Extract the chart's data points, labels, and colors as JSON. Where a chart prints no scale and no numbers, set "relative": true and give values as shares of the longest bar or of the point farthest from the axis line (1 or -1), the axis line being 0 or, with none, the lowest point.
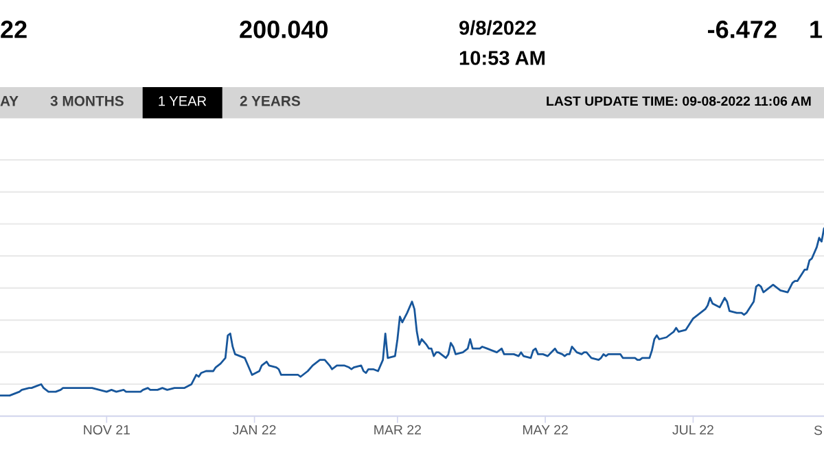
{
  "chart_data": {
    "type": "line",
    "relative": true,
    "color": "#17569b",
    "line_style": "solid",
    "grid": "y",
    "tick_labels": "x",
    "xlim": [
      "2021-09-18",
      "2022-08-24"
    ],
    "xticks": [
      {
        "value": "2021-11-01",
        "label": "NOV 21"
      },
      {
        "value": "2022-01-01",
        "label": "JAN 22"
      },
      {
        "value": "2022-03-01",
        "label": "MAR 22"
      },
      {
        "value": "2022-05-01",
        "label": "MAY 22"
      },
      {
        "value": "2022-07-01",
        "label": "JUL 22"
      }
    ],
    "annotations": [
      "22",
      "200.040",
      "9/8/2022",
      "10:53 AM",
      "-6.472",
      "1",
      "AY",
      "3 MONTHS",
      "1 YEAR",
      "2 YEARS",
      "LAST UPDATE TIME: 09-08-2022 11:06 AM",
      "S"
    ],
    "x": [
      "2021-09-18",
      "2021-09-22",
      "2021-09-24",
      "2021-09-26",
      "2021-09-27",
      "2021-09-30",
      "2021-10-01",
      "2021-10-03",
      "2021-10-05",
      "2021-10-06",
      "2021-10-08",
      "2021-10-11",
      "2021-10-13",
      "2021-10-14",
      "2021-10-16",
      "2021-10-19",
      "2021-10-21",
      "2021-10-23",
      "2021-10-26",
      "2021-10-29",
      "2021-11-01",
      "2021-11-03",
      "2021-11-05",
      "2021-11-08",
      "2021-11-09",
      "2021-11-11",
      "2021-11-15",
      "2021-11-16",
      "2021-11-18",
      "2021-11-19",
      "2021-11-22",
      "2021-11-24",
      "2021-11-26",
      "2021-11-29",
      "2021-12-01",
      "2021-12-03",
      "2021-12-06",
      "2021-12-08",
      "2021-12-09",
      "2021-12-10",
      "2021-12-12",
      "2021-12-14",
      "2021-12-15",
      "2021-12-16",
      "2021-12-18",
      "2021-12-20",
      "2021-12-21",
      "2021-12-22",
      "2021-12-23",
      "2021-12-24",
      "2021-12-26",
      "2021-12-28",
      "2021-12-29",
      "2021-12-31",
      "2022-01-03",
      "2022-01-04",
      "2022-01-06",
      "2022-01-07",
      "2022-01-10",
      "2022-01-11",
      "2022-01-12",
      "2022-01-13",
      "2022-01-18",
      "2022-01-19",
      "2022-01-20",
      "2022-01-23",
      "2022-01-25",
      "2022-01-28",
      "2022-01-30",
      "2022-02-01",
      "2022-02-02",
      "2022-02-04",
      "2022-02-07",
      "2022-02-09",
      "2022-02-10",
      "2022-02-11",
      "2022-02-14",
      "2022-02-15",
      "2022-02-16",
      "2022-02-17",
      "2022-02-19",
      "2022-02-21",
      "2022-02-23",
      "2022-02-24",
      "2022-02-25",
      "2022-02-28",
      "2022-03-01",
      "2022-03-02",
      "2022-03-03",
      "2022-03-05",
      "2022-03-07",
      "2022-03-08",
      "2022-03-09",
      "2022-03-10",
      "2022-03-11",
      "2022-03-13",
      "2022-03-14",
      "2022-03-15",
      "2022-03-16",
      "2022-03-17",
      "2022-03-18",
      "2022-03-21",
      "2022-03-22",
      "2022-03-23",
      "2022-03-24",
      "2022-03-25",
      "2022-03-28",
      "2022-03-30",
      "2022-03-31",
      "2022-04-01",
      "2022-04-04",
      "2022-04-05",
      "2022-04-07",
      "2022-04-11",
      "2022-04-13",
      "2022-04-14",
      "2022-04-18",
      "2022-04-20",
      "2022-04-21",
      "2022-04-22",
      "2022-04-25",
      "2022-04-26",
      "2022-04-27",
      "2022-04-28",
      "2022-04-30",
      "2022-05-02",
      "2022-05-05",
      "2022-05-06",
      "2022-05-08",
      "2022-05-09",
      "2022-05-10",
      "2022-05-11",
      "2022-05-12",
      "2022-05-14",
      "2022-05-16",
      "2022-05-17",
      "2022-05-18",
      "2022-05-20",
      "2022-05-23",
      "2022-05-24",
      "2022-05-25",
      "2022-05-26",
      "2022-05-27",
      "2022-05-31",
      "2022-06-01",
      "2022-06-02",
      "2022-06-03",
      "2022-06-07",
      "2022-06-08",
      "2022-06-09",
      "2022-06-10",
      "2022-06-11",
      "2022-06-13",
      "2022-06-14",
      "2022-06-15",
      "2022-06-16",
      "2022-06-17",
      "2022-06-20",
      "2022-06-22",
      "2022-06-23",
      "2022-06-24",
      "2022-06-25",
      "2022-06-28",
      "2022-06-30",
      "2022-07-01",
      "2022-07-03",
      "2022-07-05",
      "2022-07-06",
      "2022-07-07",
      "2022-07-08",
      "2022-07-09",
      "2022-07-12",
      "2022-07-14",
      "2022-07-15",
      "2022-07-16",
      "2022-07-19",
      "2022-07-20",
      "2022-07-21",
      "2022-07-22",
      "2022-07-23",
      "2022-07-26",
      "2022-07-27",
      "2022-07-28",
      "2022-07-29",
      "2022-07-30",
      "2022-08-01",
      "2022-08-03",
      "2022-08-04",
      "2022-08-05",
      "2022-08-06",
      "2022-08-09",
      "2022-08-11",
      "2022-08-12",
      "2022-08-13",
      "2022-08-15",
      "2022-08-16",
      "2022-08-17",
      "2022-08-18",
      "2022-08-19",
      "2022-08-21",
      "2022-08-22",
      "2022-08-23",
      "2022-08-24"
    ],
    "values": [
      0.11,
      0.11,
      0.12,
      0.13,
      0.14,
      0.15,
      0.15,
      0.16,
      0.17,
      0.15,
      0.13,
      0.13,
      0.14,
      0.15,
      0.15,
      0.15,
      0.15,
      0.15,
      0.15,
      0.14,
      0.13,
      0.14,
      0.13,
      0.14,
      0.13,
      0.13,
      0.13,
      0.14,
      0.15,
      0.14,
      0.14,
      0.15,
      0.14,
      0.15,
      0.15,
      0.15,
      0.17,
      0.22,
      0.21,
      0.23,
      0.24,
      0.24,
      0.24,
      0.26,
      0.28,
      0.31,
      0.43,
      0.44,
      0.37,
      0.33,
      0.32,
      0.31,
      0.28,
      0.22,
      0.24,
      0.27,
      0.29,
      0.27,
      0.26,
      0.25,
      0.22,
      0.22,
      0.22,
      0.22,
      0.21,
      0.24,
      0.27,
      0.3,
      0.3,
      0.27,
      0.25,
      0.27,
      0.27,
      0.26,
      0.25,
      0.26,
      0.27,
      0.24,
      0.23,
      0.25,
      0.25,
      0.24,
      0.3,
      0.44,
      0.31,
      0.32,
      0.41,
      0.53,
      0.5,
      0.55,
      0.61,
      0.57,
      0.45,
      0.38,
      0.41,
      0.38,
      0.36,
      0.36,
      0.32,
      0.34,
      0.34,
      0.31,
      0.33,
      0.39,
      0.37,
      0.33,
      0.34,
      0.36,
      0.41,
      0.36,
      0.36,
      0.37,
      0.36,
      0.34,
      0.36,
      0.33,
      0.33,
      0.32,
      0.34,
      0.32,
      0.31,
      0.35,
      0.36,
      0.33,
      0.33,
      0.32,
      0.36,
      0.34,
      0.33,
      0.32,
      0.33,
      0.33,
      0.37,
      0.34,
      0.33,
      0.34,
      0.34,
      0.31,
      0.3,
      0.31,
      0.33,
      0.32,
      0.33,
      0.33,
      0.33,
      0.31,
      0.31,
      0.31,
      0.3,
      0.3,
      0.31,
      0.31,
      0.31,
      0.35,
      0.41,
      0.43,
      0.41,
      0.42,
      0.44,
      0.45,
      0.47,
      0.45,
      0.46,
      0.5,
      0.52,
      0.54,
      0.56,
      0.57,
      0.59,
      0.63,
      0.6,
      0.58,
      0.63,
      0.61,
      0.56,
      0.55,
      0.55,
      0.55,
      0.54,
      0.55,
      0.61,
      0.69,
      0.7,
      0.69,
      0.66,
      0.68,
      0.7,
      0.69,
      0.68,
      0.67,
      0.66,
      0.71,
      0.72,
      0.72,
      0.76,
      0.78,
      0.78,
      0.83,
      0.84,
      0.9,
      0.95,
      0.93,
      1
    ]
  }
}
